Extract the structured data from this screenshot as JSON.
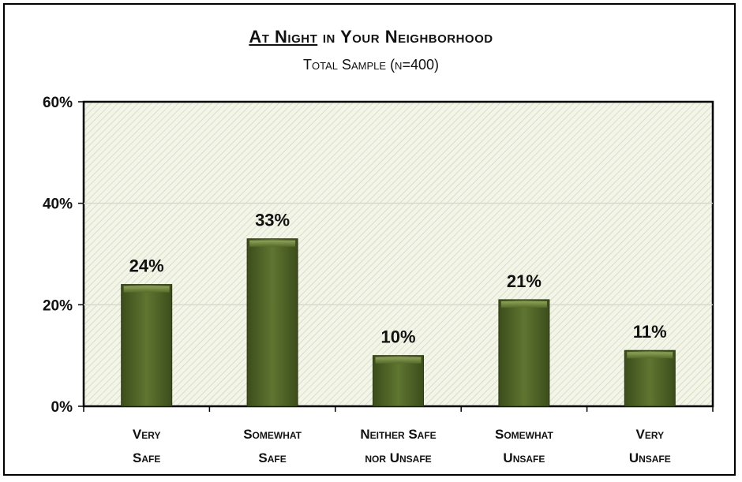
{
  "chart_data": {
    "type": "bar",
    "title_underlined": "At Night",
    "title_rest": " in Your Neighborhood",
    "subtitle": "Total Sample (n=400)",
    "categories": [
      [
        "Very",
        "Safe"
      ],
      [
        "Somewhat",
        "Safe"
      ],
      [
        "Neither Safe",
        "nor Unsafe"
      ],
      [
        "Somewhat",
        "Unsafe"
      ],
      [
        "Very",
        "Unsafe"
      ]
    ],
    "values": [
      24,
      33,
      10,
      21,
      11
    ],
    "value_labels": [
      "24%",
      "33%",
      "10%",
      "21%",
      "11%"
    ],
    "yticks": [
      "0%",
      "20%",
      "40%",
      "60%"
    ],
    "ylim": [
      0,
      60
    ],
    "grid": true,
    "bar_color": "#566b2a",
    "plot_background": "#f1f4e6"
  }
}
